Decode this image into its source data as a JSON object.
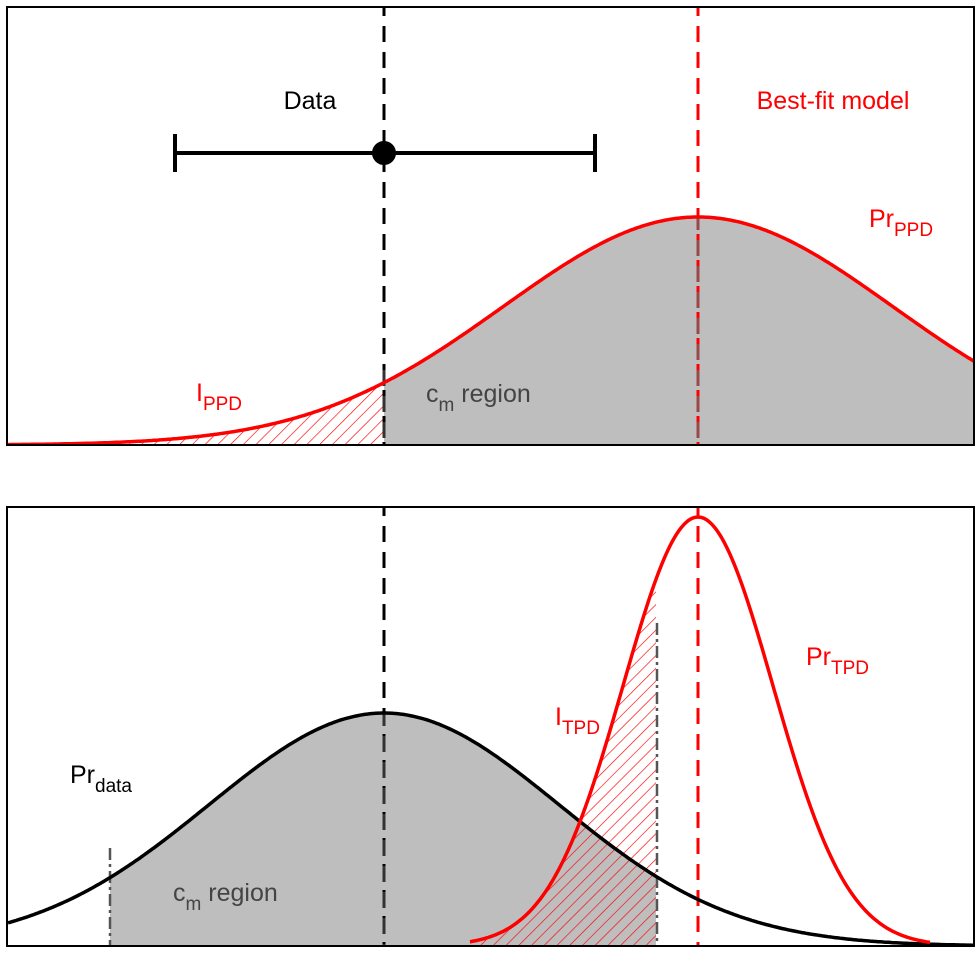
{
  "colors": {
    "model": "#ff0000",
    "data": "#000000",
    "fill_region": "#bebebe",
    "region_text": "#444444",
    "background": "#ffffff"
  },
  "top_panel": {
    "data_label": "Data",
    "model_label": "Best-fit model",
    "curve_label_main": "Pr",
    "curve_label_sub": "PPD",
    "integral_label_main": "I",
    "integral_label_sub": "PPD",
    "region_label_main": "c",
    "region_label_sub": "m",
    "region_label_rest": " region"
  },
  "bottom_panel": {
    "data_curve_label_main": "Pr",
    "data_curve_label_sub": "data",
    "model_curve_label_main": "Pr",
    "model_curve_label_sub": "TPD",
    "integral_label_main": "I",
    "integral_label_sub": "TPD",
    "region_label_main": "c",
    "region_label_sub": "m",
    "region_label_rest": " region"
  }
}
